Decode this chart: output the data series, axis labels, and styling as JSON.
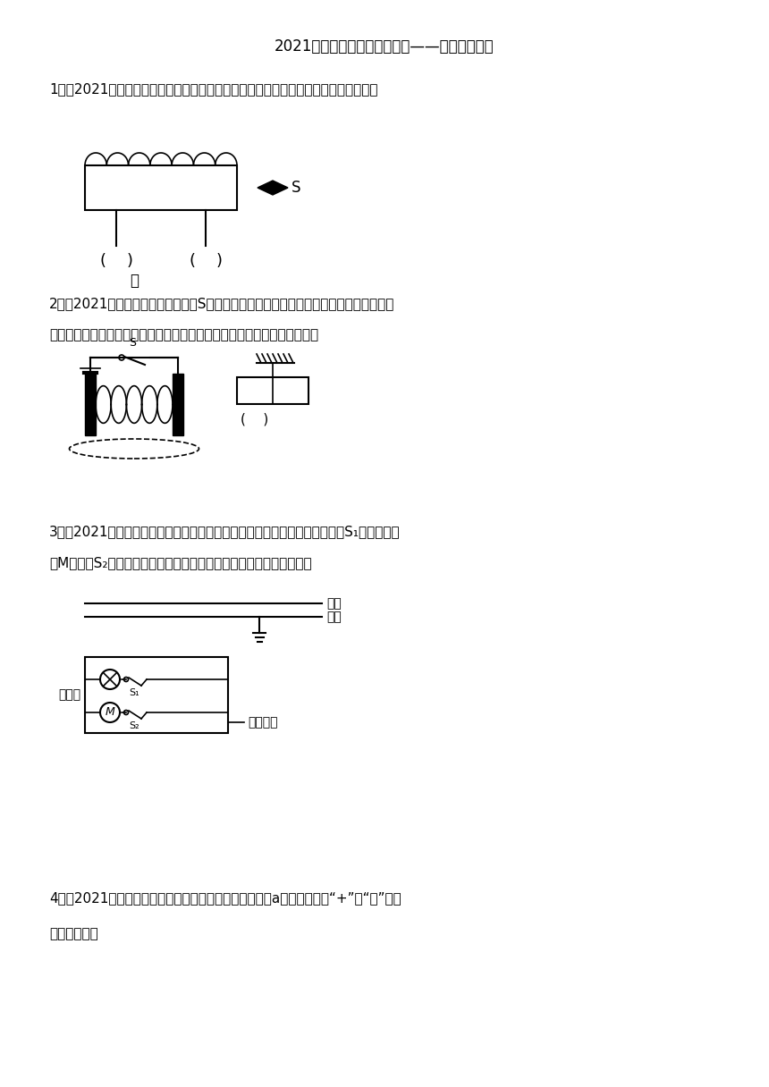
{
  "title": "2021年中考物理真题分类训练——电学作图专题",
  "bg_color": "#ffffff",
  "text_color": "#000000",
  "q1_label": "1．（2021恩施州）请根据图丙中小磁针静止时的指向，在括号内标出电源的正负极。",
  "q1_sub": "丙",
  "q2_label": "2．（2021福建）如图，当闭合开关S后，用细线悬挂的条形磁体与通电螺线管相互吸引，",
  "q2_label2": "请在图中虚线上标出磁感线的方向，并在括号内标出条形磁体左端的极性。",
  "q3_label": "3．（2021广东）如图为冰筱工作时的部分电路示意图。冰筱内照明灯由开关S₁控制，压缩",
  "q3_label2": "机M由开关S₂控制。根据题意，将图连接完整，并符合安全用电原则。",
  "q3_fire": "火线",
  "q3_zero": "零线",
  "q3_door": "门把手",
  "q3_metal": "金属外壳",
  "q4_label": "4．（2021岳阳）如图所示，请根据小磁针指向确定电源a端的极性，用“+”或“－”填在",
  "q4_label2": "（　　）内。"
}
